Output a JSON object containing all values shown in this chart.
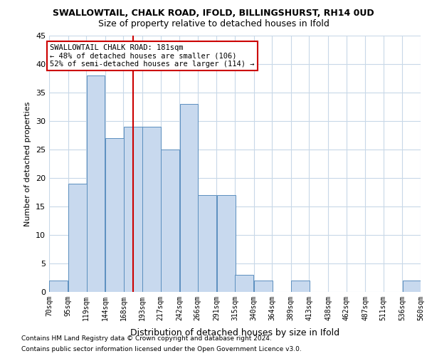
{
  "title": "SWALLOWTAIL, CHALK ROAD, IFOLD, BILLINGSHURST, RH14 0UD",
  "subtitle": "Size of property relative to detached houses in Ifold",
  "xlabel": "Distribution of detached houses by size in Ifold",
  "ylabel": "Number of detached properties",
  "footnote1": "Contains HM Land Registry data © Crown copyright and database right 2024.",
  "footnote2": "Contains public sector information licensed under the Open Government Licence v3.0.",
  "annotation_line1": "SWALLOWTAIL CHALK ROAD: 181sqm",
  "annotation_line2": "← 48% of detached houses are smaller (106)",
  "annotation_line3": "52% of semi-detached houses are larger (114) →",
  "property_size": 181,
  "bar_color": "#c8d9ee",
  "bar_edge_color": "#5b8fbf",
  "vline_color": "#cc0000",
  "annotation_box_color": "#ffffff",
  "annotation_box_edge": "#cc0000",
  "grid_color": "#c8d8e8",
  "background_color": "#ffffff",
  "bins": [
    70,
    95,
    119,
    144,
    168,
    193,
    217,
    242,
    266,
    291,
    315,
    340,
    364,
    389,
    413,
    438,
    462,
    487,
    511,
    536,
    560
  ],
  "counts": [
    2,
    19,
    38,
    27,
    29,
    29,
    25,
    33,
    17,
    17,
    3,
    2,
    0,
    2,
    0,
    0,
    0,
    0,
    0,
    2
  ],
  "ylim": [
    0,
    45
  ],
  "yticks": [
    0,
    5,
    10,
    15,
    20,
    25,
    30,
    35,
    40,
    45
  ]
}
